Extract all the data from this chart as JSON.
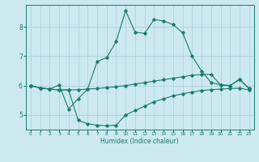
{
  "xlabel": "Humidex (Indice chaleur)",
  "background_color": "#cce9f0",
  "line_color": "#1a7a6e",
  "grid_color": "#aacdd8",
  "xlim": [
    -0.5,
    23.5
  ],
  "ylim": [
    4.5,
    8.75
  ],
  "yticks": [
    5,
    6,
    7,
    8
  ],
  "xticks": [
    0,
    1,
    2,
    3,
    4,
    5,
    6,
    7,
    8,
    9,
    10,
    11,
    12,
    13,
    14,
    15,
    16,
    17,
    18,
    19,
    20,
    21,
    22,
    23
  ],
  "line1_x": [
    0,
    1,
    2,
    3,
    4,
    5,
    6,
    7,
    8,
    9,
    10,
    11,
    12,
    13,
    14,
    15,
    16,
    17,
    18,
    19,
    20,
    21,
    22,
    23
  ],
  "line1_y": [
    6.0,
    5.92,
    5.88,
    5.85,
    5.85,
    4.82,
    4.7,
    4.65,
    4.63,
    4.65,
    5.0,
    5.15,
    5.3,
    5.45,
    5.55,
    5.65,
    5.72,
    5.78,
    5.83,
    5.86,
    5.88,
    5.9,
    5.91,
    5.85
  ],
  "line2_x": [
    0,
    1,
    2,
    3,
    4,
    5,
    6,
    7,
    8,
    9,
    10,
    11,
    12,
    13,
    14,
    15,
    16,
    17,
    18,
    19,
    20,
    21,
    22,
    23
  ],
  "line2_y": [
    6.0,
    5.92,
    5.88,
    6.02,
    5.2,
    5.55,
    5.88,
    6.82,
    6.95,
    7.5,
    8.55,
    7.82,
    7.78,
    8.25,
    8.2,
    8.08,
    7.8,
    7.0,
    6.5,
    6.1,
    6.03,
    6.0,
    6.2,
    5.9
  ],
  "line3_x": [
    0,
    1,
    2,
    3,
    4,
    5,
    6,
    7,
    8,
    9,
    10,
    11,
    12,
    13,
    14,
    15,
    16,
    17,
    18,
    19,
    20,
    21,
    22,
    23
  ],
  "line3_y": [
    6.0,
    5.92,
    5.88,
    5.85,
    5.85,
    5.86,
    5.88,
    5.9,
    5.93,
    5.96,
    6.0,
    6.05,
    6.1,
    6.15,
    6.2,
    6.25,
    6.3,
    6.35,
    6.38,
    6.38,
    6.02,
    6.0,
    6.22,
    5.9
  ]
}
